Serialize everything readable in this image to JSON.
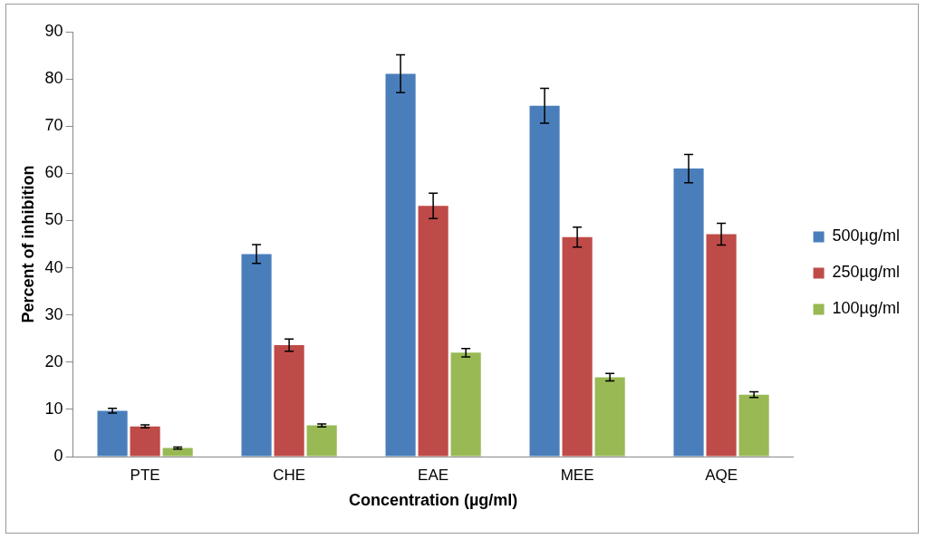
{
  "chart_data": {
    "type": "bar",
    "xlabel": "Concentration (µg/ml)",
    "ylabel": "Percent of inhibition",
    "categories": [
      "PTE",
      "CHE",
      "EAE",
      "MEE",
      "AQE"
    ],
    "series": [
      {
        "name": "500µg/ml",
        "color": "#4a7ebb",
        "values": [
          9.7,
          42.9,
          81.1,
          74.3,
          61
        ],
        "errors": [
          0.5,
          2,
          4,
          3.7,
          3
        ]
      },
      {
        "name": "250µg/ml",
        "color": "#be4b48",
        "values": [
          6.4,
          23.6,
          53.1,
          46.5,
          47.1
        ],
        "errors": [
          0.3,
          1.3,
          2.7,
          2.1,
          2.3
        ]
      },
      {
        "name": "100µg/ml",
        "color": "#98b954",
        "values": [
          1.8,
          6.6,
          22,
          16.8,
          13.1
        ],
        "errors": [
          0.2,
          0.3,
          0.9,
          0.8,
          0.6
        ]
      }
    ],
    "ylim": [
      0,
      90
    ],
    "yticks": [
      0,
      10,
      20,
      30,
      40,
      50,
      60,
      70,
      80,
      90
    ],
    "grid": false,
    "legend": "right"
  }
}
